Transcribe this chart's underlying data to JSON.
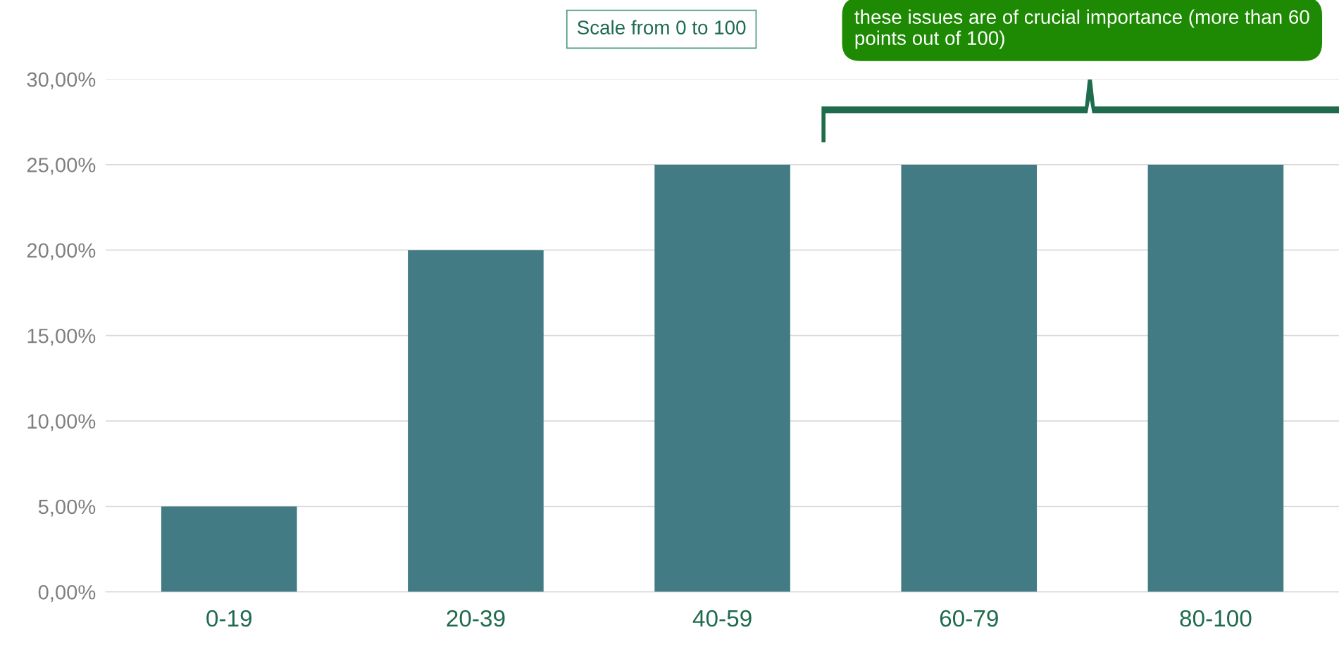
{
  "chart_data": {
    "type": "bar",
    "categories": [
      "0-19",
      "20-39",
      "40-59",
      "60-79",
      "80-100"
    ],
    "values": [
      5,
      20,
      25,
      25,
      25
    ],
    "color": "#427b84",
    "ylim": [
      0,
      30
    ],
    "yticks": [
      {
        "value": 0,
        "label": "0,00%"
      },
      {
        "value": 5,
        "label": "5,00%"
      },
      {
        "value": 10,
        "label": "10,00%"
      },
      {
        "value": 15,
        "label": "15,00%"
      },
      {
        "value": 20,
        "label": "20,00%"
      },
      {
        "value": 25,
        "label": "25,00%"
      },
      {
        "value": 30,
        "label": "30,00%"
      }
    ],
    "grid": "y",
    "annotations": [
      "Scale from 0 to 100",
      "these issues are of crucial importance (more than 60 points out of 100)"
    ]
  }
}
